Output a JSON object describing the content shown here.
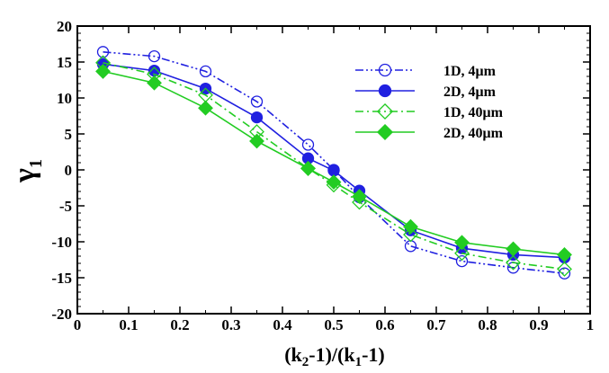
{
  "chart_data": {
    "type": "line",
    "title": "",
    "xlabel": "(k2-1)/(k1-1)",
    "xlabel_parts": {
      "open1": "(k",
      "sub1": "2",
      "mid": "-1)/(k",
      "sub2": "1",
      "close": "-1)"
    },
    "ylabel": "γ1",
    "ylabel_parts": {
      "main": "γ",
      "sub": "1"
    },
    "xlim": [
      0,
      1
    ],
    "ylim": [
      -20,
      20
    ],
    "xticks": [
      0,
      0.1,
      0.2,
      0.3,
      0.4,
      0.5,
      0.6,
      0.7,
      0.8,
      0.9,
      1
    ],
    "xtick_labels": [
      "0",
      "0.1",
      "0.2",
      "0.3",
      "0.4",
      "0.5",
      "0.6",
      "0.7",
      "0.8",
      "0.9",
      "1"
    ],
    "yticks": [
      -20,
      -15,
      -10,
      -5,
      0,
      5,
      10,
      15,
      20
    ],
    "ytick_labels": [
      "-20",
      "-15",
      "-10",
      "-5",
      "0",
      "5",
      "10",
      "15",
      "20"
    ],
    "grid": false,
    "legend_position": "top-right",
    "x": [
      0.05,
      0.15,
      0.25,
      0.35,
      0.45,
      0.5,
      0.55,
      0.65,
      0.75,
      0.85,
      0.95
    ],
    "series": [
      {
        "name": "1D, 4μm",
        "color": "#2020e0",
        "line_style": "dashdotdot",
        "marker": "circle-open",
        "values": [
          16.4,
          15.8,
          13.7,
          9.5,
          3.5,
          0.0,
          -3.8,
          -10.6,
          -12.7,
          -13.6,
          -14.4
        ]
      },
      {
        "name": "2D, 4μm",
        "color": "#2020e0",
        "line_style": "solid",
        "marker": "circle-filled",
        "values": [
          14.7,
          13.8,
          11.3,
          7.3,
          1.6,
          -0.1,
          -2.9,
          -8.4,
          -10.9,
          -11.8,
          -12.2
        ]
      },
      {
        "name": "1D, 40μm",
        "color": "#22cc22",
        "line_style": "dashdot",
        "marker": "diamond-open",
        "values": [
          14.9,
          13.3,
          10.4,
          5.3,
          0.2,
          -2.1,
          -4.5,
          -9.0,
          -11.6,
          -12.9,
          -13.8
        ]
      },
      {
        "name": "2D, 40μm",
        "color": "#22cc22",
        "line_style": "solid",
        "marker": "diamond-filled",
        "values": [
          13.7,
          12.1,
          8.6,
          4.0,
          0.2,
          -1.7,
          -3.7,
          -7.9,
          -10.1,
          -11.0,
          -11.8
        ]
      }
    ]
  }
}
